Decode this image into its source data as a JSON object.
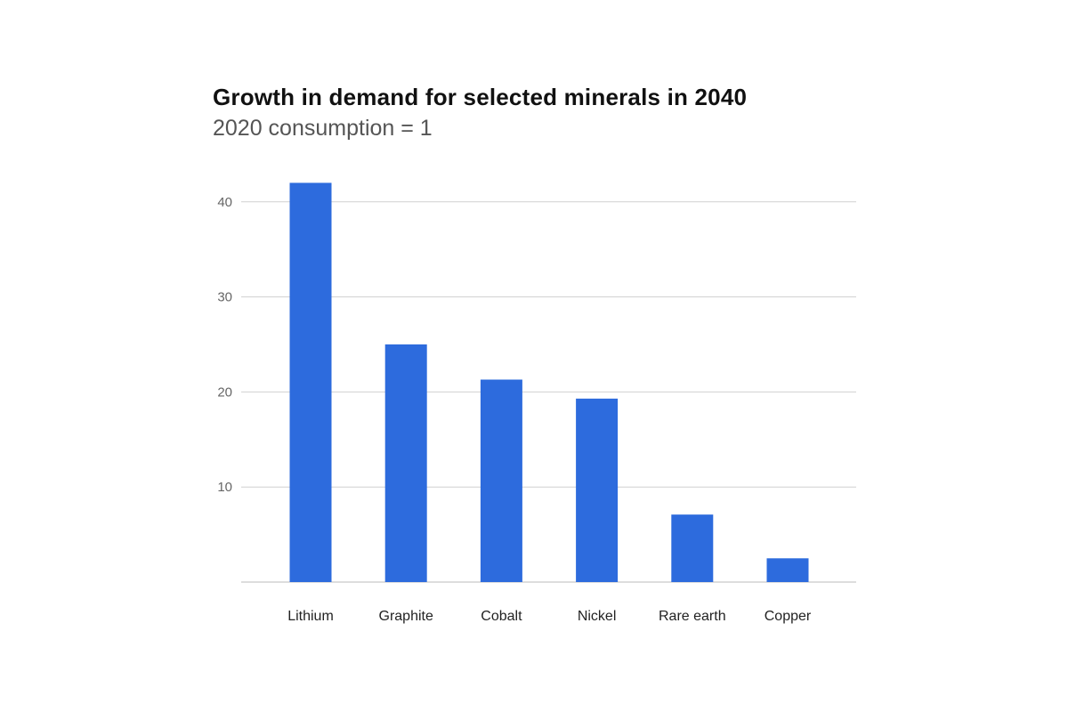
{
  "chart_data": {
    "type": "bar",
    "title": "Growth in demand for selected minerals in 2040",
    "subtitle": "2020 consumption = 1",
    "categories": [
      "Lithium",
      "Graphite",
      "Cobalt",
      "Nickel",
      "Rare earth",
      "Copper"
    ],
    "values": [
      42,
      25,
      21.3,
      19.3,
      7.1,
      2.5
    ],
    "yticks": [
      10,
      20,
      30,
      40
    ],
    "ylim": [
      0,
      45
    ],
    "grid": true,
    "bar_color": "#2d6bdd",
    "grid_color": "#d0d0d0",
    "baseline_color": "#bbbbbb"
  }
}
